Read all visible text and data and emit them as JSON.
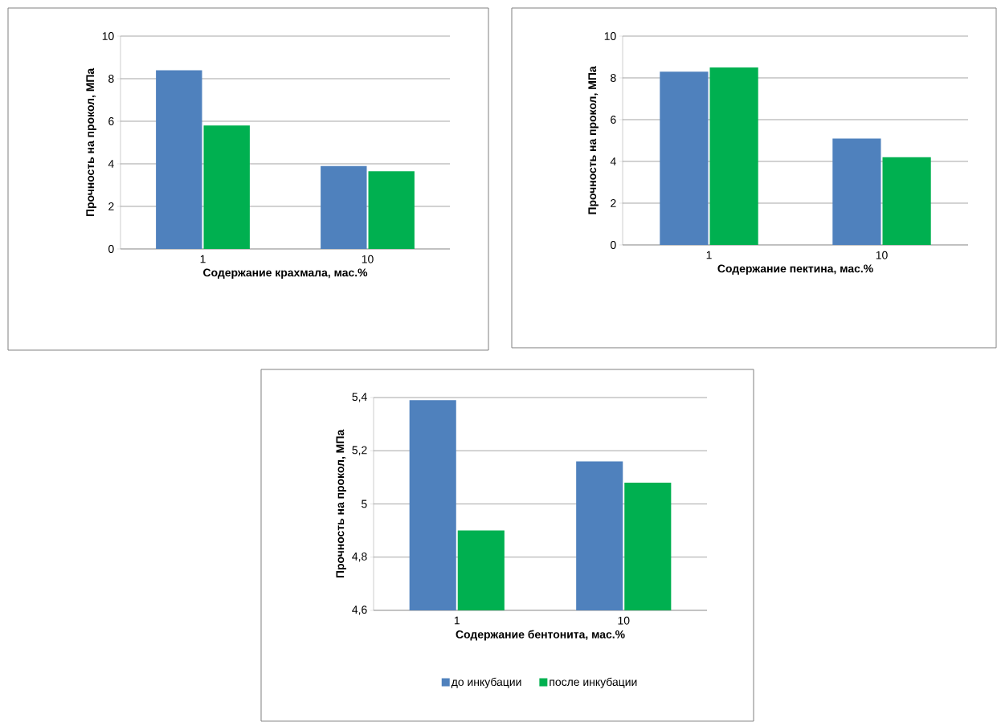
{
  "chart_data": [
    {
      "type": "bar",
      "categories": [
        "1",
        "10"
      ],
      "xlabel": "Содержание крахмала, мас.%",
      "ylabel": "Прочность на прокол, МПа",
      "ylim": [
        0,
        10
      ],
      "yticks": [
        0,
        2,
        4,
        6,
        8,
        10
      ],
      "grid": "y",
      "series": [
        {
          "color": "#4f81bd",
          "values": [
            8.4,
            3.9
          ]
        },
        {
          "color": "#00b050",
          "values": [
            5.8,
            3.65
          ]
        }
      ]
    },
    {
      "type": "bar",
      "categories": [
        "1",
        "10"
      ],
      "xlabel": "Содержание пектина, мас.%",
      "ylabel": "Прочность на прокол, МПа",
      "ylim": [
        0,
        10
      ],
      "yticks": [
        0,
        2,
        4,
        6,
        8,
        10
      ],
      "grid": "y",
      "series": [
        {
          "color": "#4f81bd",
          "values": [
            8.3,
            5.1
          ]
        },
        {
          "color": "#00b050",
          "values": [
            8.5,
            4.2
          ]
        }
      ]
    },
    {
      "type": "bar",
      "categories": [
        "1",
        "10"
      ],
      "xlabel": "Содержание бентонита, мас.%",
      "ylabel": "Прочность на прокол, МПа",
      "ylim": [
        4.6,
        5.4
      ],
      "yticks": [
        {
          "value": 4.6,
          "label": "4,6"
        },
        {
          "value": 4.8,
          "label": "4,8"
        },
        {
          "value": 5,
          "label": "5"
        },
        {
          "value": 5.2,
          "label": "5,2"
        },
        {
          "value": 5.4,
          "label": "5,4"
        }
      ],
      "grid": "y",
      "legend": "bottom",
      "series": [
        {
          "name": "до инкубации",
          "color": "#4f81bd",
          "values": [
            5.39,
            5.16
          ]
        },
        {
          "name": "после инкубации",
          "color": "#00b050",
          "values": [
            4.9,
            5.08
          ]
        }
      ]
    }
  ]
}
